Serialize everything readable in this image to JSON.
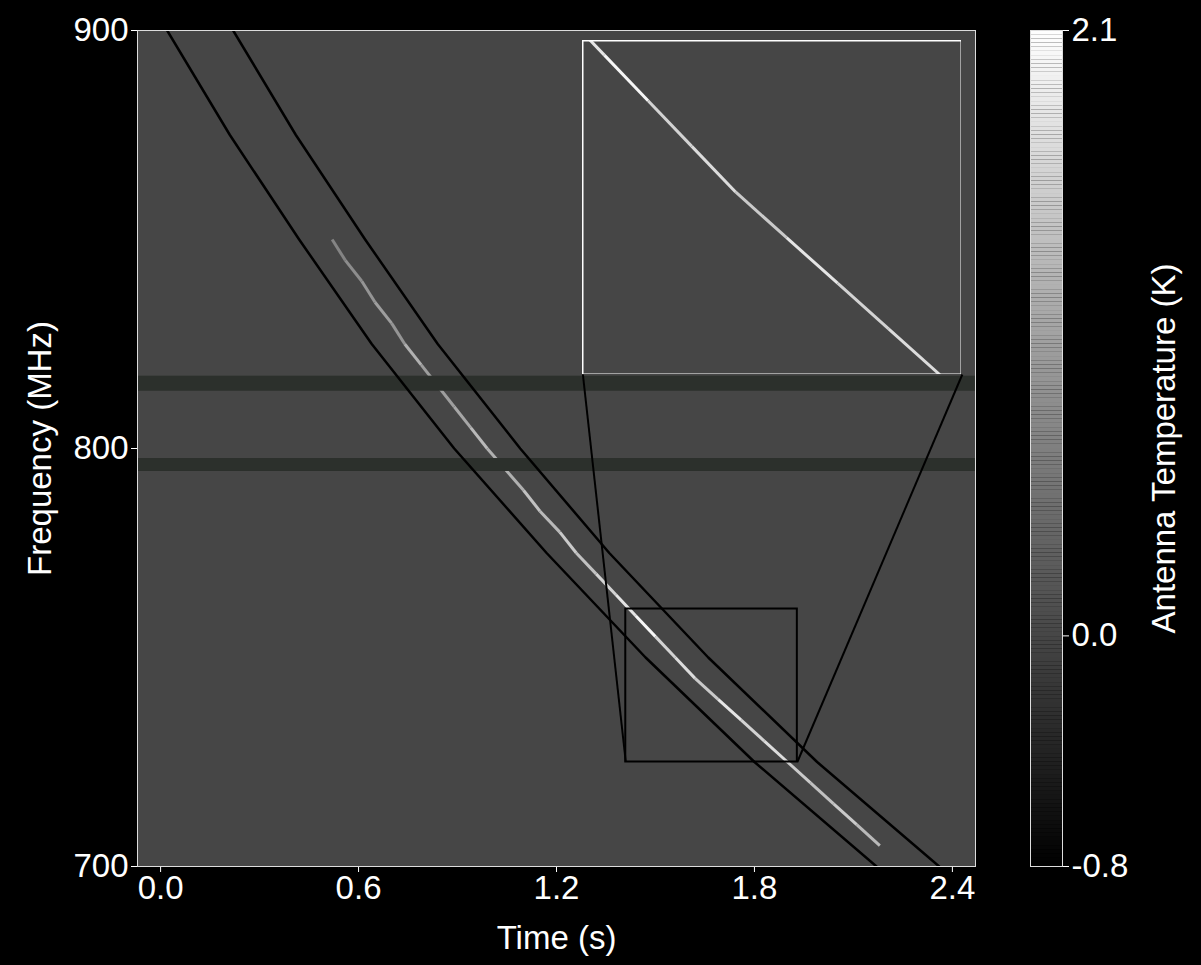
{
  "chart_data": {
    "type": "dynamic_spectrum",
    "x_label": "Time (s)",
    "y_label": "Frequency (MHz)",
    "xlim": [
      -0.07,
      2.47
    ],
    "xticks": [
      {
        "value": 0,
        "label": "0.0"
      },
      0.6,
      1.2,
      1.8,
      2.4
    ],
    "ylim": [
      700,
      900
    ],
    "yticks": [
      700,
      800,
      900
    ],
    "background_level": 0,
    "colorbar": {
      "label": "Antenna Temperature (K)",
      "range": [
        -0.8,
        2.1
      ],
      "ticks": [
        2.1,
        {
          "value": 0,
          "label": "0.0"
        },
        -0.8
      ]
    },
    "masked_bands": [
      [
        813.7,
        817.3
      ],
      [
        794.5,
        797.6
      ]
    ],
    "sweep_curves": [
      {
        "x": [
          0.02,
          0.21,
          0.42,
          0.64,
          0.89,
          1.17,
          1.47,
          1.8,
          2.17
        ],
        "y": [
          900,
          875,
          850,
          825,
          800,
          775,
          750,
          725,
          700
        ]
      },
      {
        "x": [
          0.22,
          0.41,
          0.62,
          0.84,
          1.09,
          1.36,
          1.66,
          1.99,
          2.36
        ],
        "y": [
          900,
          875,
          850,
          825,
          800,
          775,
          750,
          725,
          700
        ]
      }
    ],
    "burst": {
      "x": [
        0.52,
        0.56,
        0.61,
        0.65,
        0.7,
        0.74,
        0.79,
        0.89,
        0.94,
        0.99,
        1.1,
        1.15,
        1.21,
        1.26,
        1.32,
        1.38,
        1.44,
        1.5,
        1.56,
        1.62,
        1.69,
        1.76,
        1.83,
        1.9,
        1.97,
        2.04,
        2.11,
        2.18
      ],
      "y": [
        850,
        845,
        840,
        835,
        830,
        825,
        820,
        810,
        805,
        800,
        790,
        785,
        780,
        775,
        770,
        765,
        760,
        755,
        750,
        745,
        740,
        735,
        730,
        725,
        720,
        715,
        710,
        705
      ],
      "values": [
        0.7,
        0.8,
        0.9,
        1.0,
        0.9,
        1.2,
        1.0,
        1.1,
        1.3,
        1.2,
        1.4,
        1.3,
        1.5,
        1.4,
        1.6,
        1.8,
        2.0,
        1.6,
        1.7,
        1.5,
        1.8,
        1.6,
        1.7,
        1.5,
        1.4,
        1.5,
        1.3,
        1.2
      ]
    },
    "zoom": {
      "region": {
        "x": [
          1.41,
          1.93
        ],
        "y": [
          725,
          761.6
        ]
      },
      "inset": {
        "x": [
          1.28,
          2.43
        ],
        "y": [
          817.7,
          897.6
        ]
      }
    }
  }
}
